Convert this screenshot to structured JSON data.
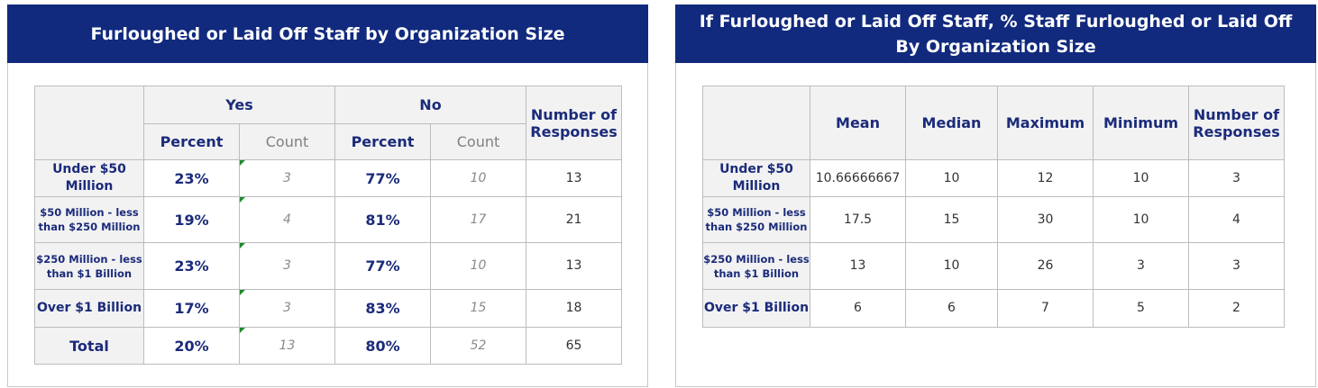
{
  "left": {
    "title": "Furloughed or Laid Off Staff by Organization Size",
    "groups": [
      "Yes",
      "No"
    ],
    "subheaders": [
      "Percent",
      "Count",
      "Percent",
      "Count"
    ],
    "responses_header": "Number of Responses",
    "rows": [
      [
        "Under $50 Million",
        "23%",
        "3",
        "77%",
        "10",
        "13"
      ],
      [
        "$50 Million - less than $250 Million",
        "19%",
        "4",
        "81%",
        "17",
        "21"
      ],
      [
        "$250 Million - less than $1 Billion",
        "23%",
        "3",
        "77%",
        "10",
        "13"
      ],
      [
        "Over $1 Billion",
        "17%",
        "3",
        "83%",
        "15",
        "18"
      ],
      [
        "Total",
        "20%",
        "13",
        "80%",
        "52",
        "65"
      ]
    ]
  },
  "right": {
    "title": "If Furloughed or Laid Off Staff, % Staff Furloughed or Laid Off By Organization Size",
    "headers": [
      "Mean",
      "Median",
      "Maximum",
      "Minimum",
      "Number of Responses"
    ],
    "rows": [
      [
        "Under $50 Million",
        "10.66666667",
        "10",
        "12",
        "10",
        "3"
      ],
      [
        "$50 Million - less than $250 Million",
        "17.5",
        "15",
        "30",
        "10",
        "4"
      ],
      [
        "$250 Million - less than $1 Billion",
        "13",
        "10",
        "26",
        "3",
        "3"
      ],
      [
        "Over $1 Billion",
        "6",
        "6",
        "7",
        "5",
        "2"
      ]
    ]
  }
}
